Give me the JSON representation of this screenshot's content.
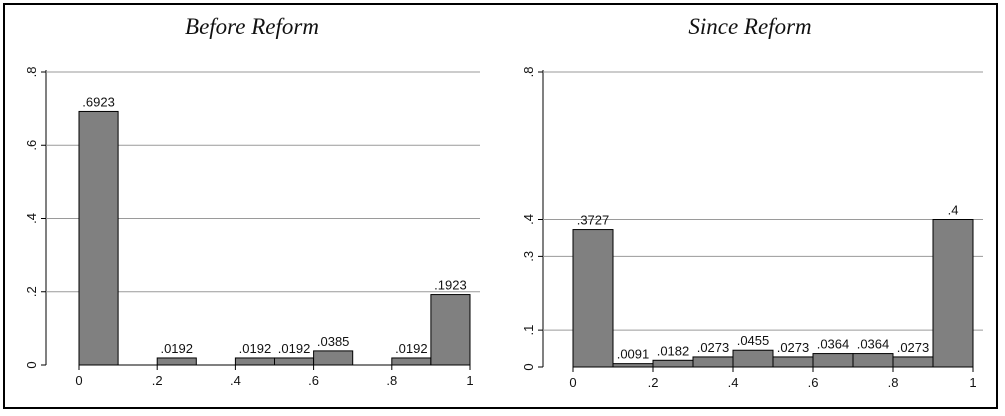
{
  "chart_data": [
    {
      "type": "bar",
      "title": "Before Reform",
      "xlabel": "",
      "ylabel": "",
      "xlim": [
        0,
        1
      ],
      "ylim": [
        0,
        0.8
      ],
      "bin_width": 0.1,
      "x_ticks": [
        "0",
        ".2",
        ".4",
        ".6",
        ".8",
        "1"
      ],
      "y_ticks": [
        "0",
        ".2",
        ".4",
        ".6",
        ".8"
      ],
      "bars": [
        {
          "x": 0.0,
          "value": 0.6923,
          "label": ".6923"
        },
        {
          "x": 0.2,
          "value": 0.0192,
          "label": ".0192"
        },
        {
          "x": 0.4,
          "value": 0.0192,
          "label": ".0192"
        },
        {
          "x": 0.5,
          "value": 0.0192,
          "label": ".0192"
        },
        {
          "x": 0.6,
          "value": 0.0385,
          "label": ".0385"
        },
        {
          "x": 0.8,
          "value": 0.0192,
          "label": ".0192"
        },
        {
          "x": 0.9,
          "value": 0.1923,
          "label": ".1923"
        }
      ],
      "grid": true,
      "bar_color": "#808080"
    },
    {
      "type": "bar",
      "title": "Since Reform",
      "xlabel": "",
      "ylabel": "",
      "xlim": [
        0,
        1
      ],
      "ylim": [
        0,
        0.8
      ],
      "bin_width": 0.1,
      "x_ticks": [
        "0",
        ".2",
        ".4",
        ".6",
        ".8",
        "1"
      ],
      "y_ticks": [
        "0",
        ".1",
        ".3",
        ".4",
        ".8"
      ],
      "bars": [
        {
          "x": 0.0,
          "value": 0.3727,
          "label": ".3727"
        },
        {
          "x": 0.1,
          "value": 0.0091,
          "label": ".0091"
        },
        {
          "x": 0.2,
          "value": 0.0182,
          "label": ".0182"
        },
        {
          "x": 0.3,
          "value": 0.0273,
          "label": ".0273"
        },
        {
          "x": 0.4,
          "value": 0.0455,
          "label": ".0455"
        },
        {
          "x": 0.5,
          "value": 0.0273,
          "label": ".0273"
        },
        {
          "x": 0.6,
          "value": 0.0364,
          "label": ".0364"
        },
        {
          "x": 0.7,
          "value": 0.0364,
          "label": ".0364"
        },
        {
          "x": 0.8,
          "value": 0.0273,
          "label": ".0273"
        },
        {
          "x": 0.9,
          "value": 0.4,
          "label": ".4"
        }
      ],
      "grid": true,
      "bar_color": "#808080"
    }
  ]
}
